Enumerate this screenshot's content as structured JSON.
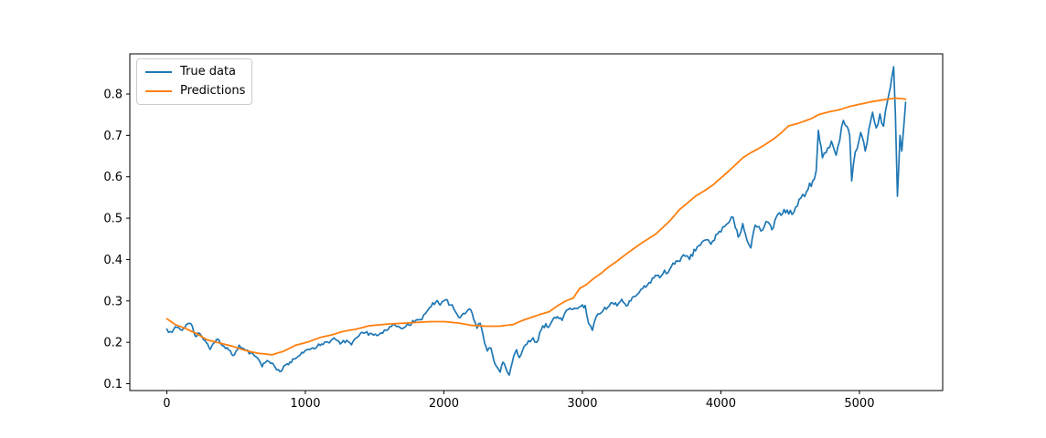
{
  "figure": {
    "background_color": "#ffffff",
    "axis_color": "#000000",
    "tick_label_color": "#000000"
  },
  "legend": {
    "position": "upper left",
    "border_color": "#cccccc",
    "items": [
      {
        "label": "True data",
        "color": "#1f77b4"
      },
      {
        "label": "Predictions",
        "color": "#ff7f0e"
      }
    ]
  },
  "chart_data": {
    "type": "line",
    "title": "",
    "xlabel": "",
    "ylabel": "",
    "grid": false,
    "legend_position": "upper left",
    "xlim": [
      -267,
      5601
    ],
    "ylim": [
      0.0835,
      0.897
    ],
    "x_ticks": [
      {
        "value": 0,
        "label": "0"
      },
      {
        "value": 1000,
        "label": "1000"
      },
      {
        "value": 2000,
        "label": "2000"
      },
      {
        "value": 3000,
        "label": "3000"
      },
      {
        "value": 4000,
        "label": "4000"
      },
      {
        "value": 5000,
        "label": "5000"
      }
    ],
    "y_ticks": [
      {
        "value": 0.1,
        "label": "0.1"
      },
      {
        "value": 0.2,
        "label": "0.2"
      },
      {
        "value": 0.3,
        "label": "0.3"
      },
      {
        "value": 0.4,
        "label": "0.4"
      },
      {
        "value": 0.5,
        "label": "0.5"
      },
      {
        "value": 0.6,
        "label": "0.6"
      },
      {
        "value": 0.7,
        "label": "0.7"
      },
      {
        "value": 0.8,
        "label": "0.8"
      }
    ],
    "series": [
      {
        "name": "True data",
        "color": "#1f77b4",
        "linewidth": 1.7,
        "noise_amplitude": 0.006,
        "noise_step": 12,
        "seed": 7,
        "points": [
          [
            0,
            0.232
          ],
          [
            25,
            0.226
          ],
          [
            50,
            0.231
          ],
          [
            80,
            0.236
          ],
          [
            110,
            0.229
          ],
          [
            140,
            0.243
          ],
          [
            165,
            0.246
          ],
          [
            185,
            0.238
          ],
          [
            205,
            0.215
          ],
          [
            235,
            0.222
          ],
          [
            255,
            0.213
          ],
          [
            275,
            0.205
          ],
          [
            295,
            0.196
          ],
          [
            313,
            0.183
          ],
          [
            335,
            0.197
          ],
          [
            360,
            0.207
          ],
          [
            385,
            0.199
          ],
          [
            410,
            0.191
          ],
          [
            425,
            0.185
          ],
          [
            445,
            0.182
          ],
          [
            460,
            0.179
          ],
          [
            478,
            0.168
          ],
          [
            500,
            0.179
          ],
          [
            522,
            0.193
          ],
          [
            545,
            0.186
          ],
          [
            570,
            0.181
          ],
          [
            607,
            0.174
          ],
          [
            638,
            0.166
          ],
          [
            660,
            0.16
          ],
          [
            688,
            0.141
          ],
          [
            708,
            0.15
          ],
          [
            725,
            0.156
          ],
          [
            750,
            0.149
          ],
          [
            780,
            0.141
          ],
          [
            806,
            0.134
          ],
          [
            826,
            0.13
          ],
          [
            845,
            0.143
          ],
          [
            868,
            0.148
          ],
          [
            888,
            0.152
          ],
          [
            920,
            0.16
          ],
          [
            952,
            0.167
          ],
          [
            985,
            0.174
          ],
          [
            1018,
            0.183
          ],
          [
            1052,
            0.187
          ],
          [
            1085,
            0.19
          ],
          [
            1118,
            0.196
          ],
          [
            1150,
            0.201
          ],
          [
            1185,
            0.204
          ],
          [
            1215,
            0.208
          ],
          [
            1252,
            0.196
          ],
          [
            1298,
            0.205
          ],
          [
            1333,
            0.194
          ],
          [
            1388,
            0.216
          ],
          [
            1433,
            0.223
          ],
          [
            1478,
            0.221
          ],
          [
            1518,
            0.216
          ],
          [
            1558,
            0.222
          ],
          [
            1598,
            0.231
          ],
          [
            1632,
            0.243
          ],
          [
            1660,
            0.238
          ],
          [
            1698,
            0.233
          ],
          [
            1738,
            0.245
          ],
          [
            1788,
            0.249
          ],
          [
            1828,
            0.255
          ],
          [
            1868,
            0.27
          ],
          [
            1908,
            0.286
          ],
          [
            1943,
            0.298
          ],
          [
            1973,
            0.29
          ],
          [
            2013,
            0.303
          ],
          [
            2048,
            0.29
          ],
          [
            2073,
            0.28
          ],
          [
            2108,
            0.26
          ],
          [
            2140,
            0.27
          ],
          [
            2165,
            0.274
          ],
          [
            2195,
            0.278
          ],
          [
            2215,
            0.256
          ],
          [
            2240,
            0.234
          ],
          [
            2262,
            0.246
          ],
          [
            2282,
            0.219
          ],
          [
            2295,
            0.197
          ],
          [
            2313,
            0.179
          ],
          [
            2340,
            0.186
          ],
          [
            2360,
            0.157
          ],
          [
            2380,
            0.142
          ],
          [
            2406,
            0.128
          ],
          [
            2426,
            0.152
          ],
          [
            2446,
            0.139
          ],
          [
            2472,
            0.121
          ],
          [
            2505,
            0.168
          ],
          [
            2525,
            0.182
          ],
          [
            2545,
            0.163
          ],
          [
            2578,
            0.189
          ],
          [
            2611,
            0.204
          ],
          [
            2644,
            0.211
          ],
          [
            2670,
            0.2
          ],
          [
            2703,
            0.23
          ],
          [
            2736,
            0.245
          ],
          [
            2755,
            0.236
          ],
          [
            2788,
            0.256
          ],
          [
            2821,
            0.262
          ],
          [
            2854,
            0.253
          ],
          [
            2887,
            0.278
          ],
          [
            2920,
            0.28
          ],
          [
            2953,
            0.282
          ],
          [
            2990,
            0.287
          ],
          [
            3020,
            0.289
          ],
          [
            3045,
            0.245
          ],
          [
            3072,
            0.229
          ],
          [
            3100,
            0.262
          ],
          [
            3150,
            0.277
          ],
          [
            3218,
            0.295
          ],
          [
            3250,
            0.288
          ],
          [
            3284,
            0.304
          ],
          [
            3317,
            0.288
          ],
          [
            3383,
            0.311
          ],
          [
            3435,
            0.33
          ],
          [
            3458,
            0.333
          ],
          [
            3528,
            0.362
          ],
          [
            3558,
            0.356
          ],
          [
            3593,
            0.374
          ],
          [
            3618,
            0.368
          ],
          [
            3678,
            0.397
          ],
          [
            3743,
            0.408
          ],
          [
            3773,
            0.4
          ],
          [
            3828,
            0.43
          ],
          [
            3898,
            0.448
          ],
          [
            3928,
            0.437
          ],
          [
            3988,
            0.468
          ],
          [
            4053,
            0.488
          ],
          [
            4088,
            0.502
          ],
          [
            4105,
            0.476
          ],
          [
            4125,
            0.454
          ],
          [
            4158,
            0.487
          ],
          [
            4188,
            0.447
          ],
          [
            4216,
            0.428
          ],
          [
            4248,
            0.483
          ],
          [
            4288,
            0.469
          ],
          [
            4338,
            0.491
          ],
          [
            4368,
            0.472
          ],
          [
            4423,
            0.513
          ],
          [
            4478,
            0.52
          ],
          [
            4513,
            0.509
          ],
          [
            4578,
            0.549
          ],
          [
            4618,
            0.564
          ],
          [
            4663,
            0.59
          ],
          [
            4688,
            0.615
          ],
          [
            4703,
            0.712
          ],
          [
            4733,
            0.646
          ],
          [
            4798,
            0.686
          ],
          [
            4832,
            0.652
          ],
          [
            4884,
            0.736
          ],
          [
            4911,
            0.721
          ],
          [
            4930,
            0.7
          ],
          [
            4944,
            0.59
          ],
          [
            4970,
            0.66
          ],
          [
            5009,
            0.707
          ],
          [
            5042,
            0.662
          ],
          [
            5095,
            0.756
          ],
          [
            5121,
            0.718
          ],
          [
            5148,
            0.752
          ],
          [
            5174,
            0.722
          ],
          [
            5213,
            0.8
          ],
          [
            5247,
            0.866
          ],
          [
            5260,
            0.75
          ],
          [
            5274,
            0.553
          ],
          [
            5293,
            0.7
          ],
          [
            5306,
            0.662
          ],
          [
            5320,
            0.72
          ],
          [
            5334,
            0.78
          ]
        ]
      },
      {
        "name": "Predictions",
        "color": "#ff7f0e",
        "linewidth": 1.8,
        "noise_amplitude": 0,
        "noise_step": 20,
        "seed": 3,
        "points": [
          [
            0,
            0.257
          ],
          [
            60,
            0.243
          ],
          [
            130,
            0.234
          ],
          [
            210,
            0.222
          ],
          [
            290,
            0.206
          ],
          [
            350,
            0.201
          ],
          [
            410,
            0.196
          ],
          [
            480,
            0.19
          ],
          [
            560,
            0.181
          ],
          [
            650,
            0.174
          ],
          [
            760,
            0.17
          ],
          [
            840,
            0.178
          ],
          [
            930,
            0.193
          ],
          [
            1020,
            0.201
          ],
          [
            1110,
            0.212
          ],
          [
            1190,
            0.218
          ],
          [
            1280,
            0.227
          ],
          [
            1370,
            0.232
          ],
          [
            1460,
            0.24
          ],
          [
            1590,
            0.244
          ],
          [
            1700,
            0.246
          ],
          [
            1800,
            0.248
          ],
          [
            1900,
            0.25
          ],
          [
            2000,
            0.25
          ],
          [
            2100,
            0.247
          ],
          [
            2200,
            0.241
          ],
          [
            2300,
            0.239
          ],
          [
            2400,
            0.239
          ],
          [
            2500,
            0.243
          ],
          [
            2560,
            0.252
          ],
          [
            2620,
            0.259
          ],
          [
            2690,
            0.267
          ],
          [
            2760,
            0.274
          ],
          [
            2820,
            0.288
          ],
          [
            2880,
            0.3
          ],
          [
            2934,
            0.307
          ],
          [
            2980,
            0.33
          ],
          [
            3030,
            0.34
          ],
          [
            3085,
            0.355
          ],
          [
            3140,
            0.368
          ],
          [
            3197,
            0.384
          ],
          [
            3250,
            0.396
          ],
          [
            3303,
            0.41
          ],
          [
            3360,
            0.424
          ],
          [
            3415,
            0.437
          ],
          [
            3470,
            0.449
          ],
          [
            3527,
            0.461
          ],
          [
            3580,
            0.477
          ],
          [
            3633,
            0.494
          ],
          [
            3699,
            0.52
          ],
          [
            3760,
            0.537
          ],
          [
            3820,
            0.554
          ],
          [
            3880,
            0.566
          ],
          [
            3942,
            0.58
          ],
          [
            4000,
            0.597
          ],
          [
            4054,
            0.613
          ],
          [
            4105,
            0.629
          ],
          [
            4159,
            0.646
          ],
          [
            4215,
            0.658
          ],
          [
            4271,
            0.668
          ],
          [
            4325,
            0.679
          ],
          [
            4383,
            0.692
          ],
          [
            4435,
            0.706
          ],
          [
            4489,
            0.723
          ],
          [
            4545,
            0.728
          ],
          [
            4601,
            0.734
          ],
          [
            4655,
            0.741
          ],
          [
            4713,
            0.751
          ],
          [
            4770,
            0.756
          ],
          [
            4867,
            0.763
          ],
          [
            4930,
            0.77
          ],
          [
            4999,
            0.775
          ],
          [
            5097,
            0.782
          ],
          [
            5196,
            0.787
          ],
          [
            5262,
            0.79
          ],
          [
            5300,
            0.789
          ],
          [
            5334,
            0.787
          ]
        ]
      }
    ]
  }
}
